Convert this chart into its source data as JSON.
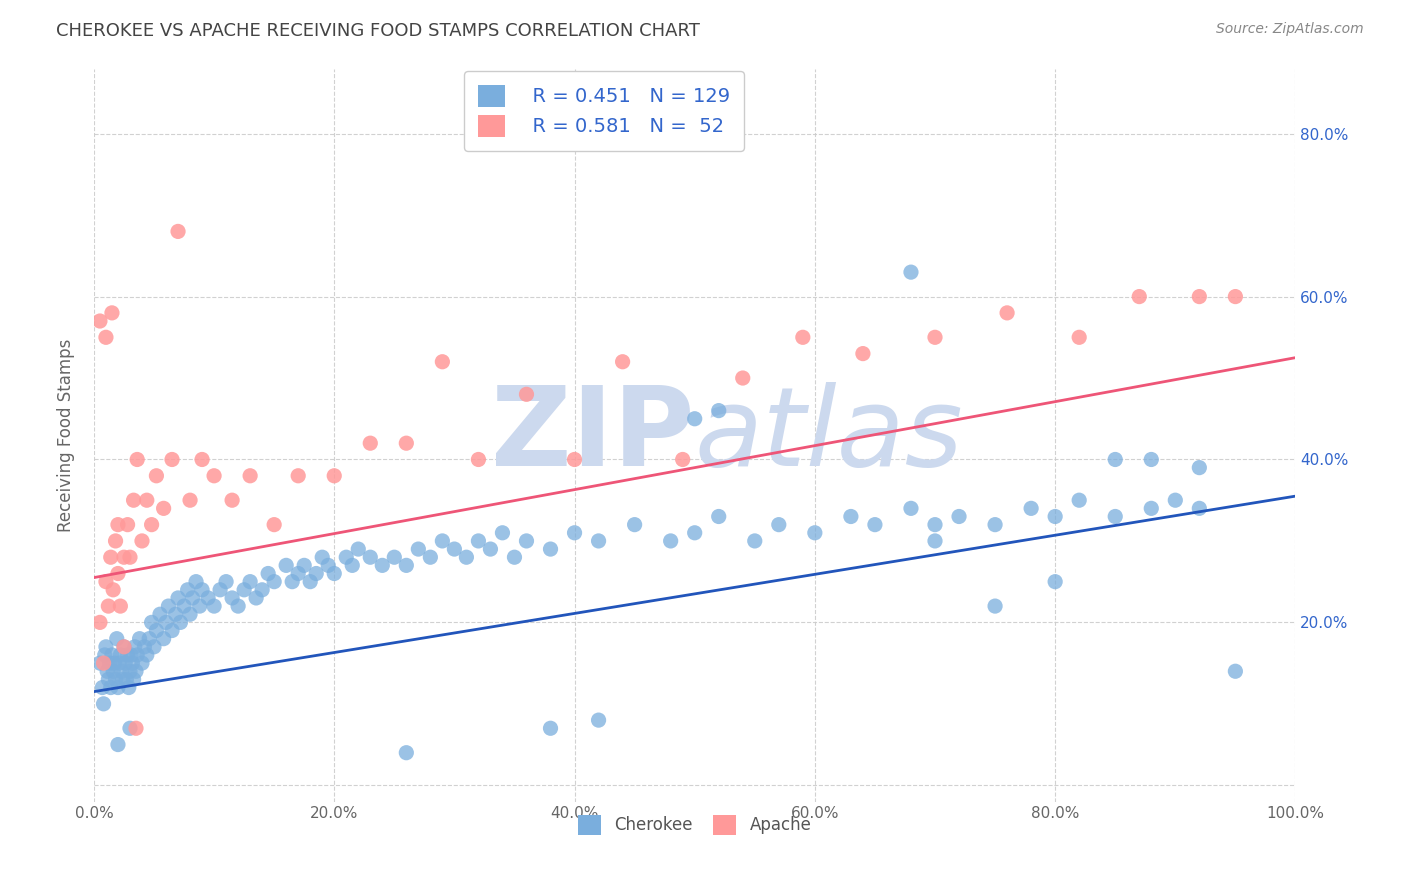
{
  "title": "CHEROKEE VS APACHE RECEIVING FOOD STAMPS CORRELATION CHART",
  "source": "Source: ZipAtlas.com",
  "ylabel": "Receiving Food Stamps",
  "xlim": [
    0.0,
    1.0
  ],
  "ylim": [
    -0.02,
    0.88
  ],
  "x_ticks": [
    0.0,
    0.2,
    0.4,
    0.6,
    0.8,
    1.0
  ],
  "x_tick_labels": [
    "0.0%",
    "20.0%",
    "40.0%",
    "60.0%",
    "80.0%",
    "100.0%"
  ],
  "y_ticks": [
    0.0,
    0.2,
    0.4,
    0.6,
    0.8
  ],
  "y_tick_labels_right": [
    "",
    "20.0%",
    "40.0%",
    "60.0%",
    "80.0%"
  ],
  "legend_R_cherokee": "R = 0.451",
  "legend_N_cherokee": "N = 129",
  "legend_R_apache": "R = 0.581",
  "legend_N_apache": "N =  52",
  "cherokee_color": "#7aaedd",
  "apache_color": "#ff9999",
  "cherokee_line_color": "#2255bb",
  "apache_line_color": "#ee5577",
  "legend_text_color": "#3366cc",
  "title_color": "#444444",
  "watermark_color": "#ccd9ee",
  "background_color": "#ffffff",
  "grid_color": "#cccccc",
  "cherokee_x": [
    0.005,
    0.007,
    0.008,
    0.009,
    0.01,
    0.011,
    0.012,
    0.013,
    0.014,
    0.015,
    0.016,
    0.017,
    0.018,
    0.019,
    0.02,
    0.021,
    0.022,
    0.023,
    0.024,
    0.025,
    0.026,
    0.027,
    0.028,
    0.029,
    0.03,
    0.031,
    0.032,
    0.033,
    0.034,
    0.035,
    0.036,
    0.038,
    0.04,
    0.042,
    0.044,
    0.046,
    0.048,
    0.05,
    0.052,
    0.055,
    0.058,
    0.06,
    0.062,
    0.065,
    0.068,
    0.07,
    0.072,
    0.075,
    0.078,
    0.08,
    0.082,
    0.085,
    0.088,
    0.09,
    0.095,
    0.1,
    0.105,
    0.11,
    0.115,
    0.12,
    0.125,
    0.13,
    0.135,
    0.14,
    0.145,
    0.15,
    0.16,
    0.165,
    0.17,
    0.175,
    0.18,
    0.185,
    0.19,
    0.195,
    0.2,
    0.21,
    0.215,
    0.22,
    0.23,
    0.24,
    0.25,
    0.26,
    0.27,
    0.28,
    0.29,
    0.3,
    0.31,
    0.32,
    0.33,
    0.34,
    0.35,
    0.36,
    0.38,
    0.4,
    0.42,
    0.45,
    0.48,
    0.5,
    0.52,
    0.55,
    0.57,
    0.6,
    0.63,
    0.65,
    0.68,
    0.7,
    0.72,
    0.75,
    0.78,
    0.8,
    0.82,
    0.85,
    0.88,
    0.9,
    0.92,
    0.5,
    0.52,
    0.68,
    0.7,
    0.75,
    0.8,
    0.85,
    0.88,
    0.92,
    0.95,
    0.26,
    0.38,
    0.42,
    0.02,
    0.03
  ],
  "cherokee_y": [
    0.15,
    0.12,
    0.1,
    0.16,
    0.17,
    0.14,
    0.13,
    0.15,
    0.12,
    0.16,
    0.14,
    0.15,
    0.13,
    0.18,
    0.12,
    0.15,
    0.16,
    0.14,
    0.13,
    0.17,
    0.15,
    0.13,
    0.16,
    0.12,
    0.14,
    0.16,
    0.15,
    0.13,
    0.17,
    0.14,
    0.16,
    0.18,
    0.15,
    0.17,
    0.16,
    0.18,
    0.2,
    0.17,
    0.19,
    0.21,
    0.18,
    0.2,
    0.22,
    0.19,
    0.21,
    0.23,
    0.2,
    0.22,
    0.24,
    0.21,
    0.23,
    0.25,
    0.22,
    0.24,
    0.23,
    0.22,
    0.24,
    0.25,
    0.23,
    0.22,
    0.24,
    0.25,
    0.23,
    0.24,
    0.26,
    0.25,
    0.27,
    0.25,
    0.26,
    0.27,
    0.25,
    0.26,
    0.28,
    0.27,
    0.26,
    0.28,
    0.27,
    0.29,
    0.28,
    0.27,
    0.28,
    0.27,
    0.29,
    0.28,
    0.3,
    0.29,
    0.28,
    0.3,
    0.29,
    0.31,
    0.28,
    0.3,
    0.29,
    0.31,
    0.3,
    0.32,
    0.3,
    0.31,
    0.33,
    0.3,
    0.32,
    0.31,
    0.33,
    0.32,
    0.34,
    0.32,
    0.33,
    0.32,
    0.34,
    0.33,
    0.35,
    0.33,
    0.34,
    0.35,
    0.34,
    0.45,
    0.46,
    0.63,
    0.3,
    0.22,
    0.25,
    0.4,
    0.4,
    0.39,
    0.14,
    0.04,
    0.07,
    0.08,
    0.05,
    0.07
  ],
  "apache_x": [
    0.005,
    0.008,
    0.01,
    0.012,
    0.014,
    0.016,
    0.018,
    0.02,
    0.022,
    0.025,
    0.028,
    0.03,
    0.033,
    0.036,
    0.04,
    0.044,
    0.048,
    0.052,
    0.058,
    0.065,
    0.07,
    0.08,
    0.09,
    0.1,
    0.115,
    0.13,
    0.15,
    0.17,
    0.2,
    0.23,
    0.26,
    0.29,
    0.32,
    0.36,
    0.4,
    0.44,
    0.49,
    0.54,
    0.59,
    0.64,
    0.7,
    0.76,
    0.82,
    0.87,
    0.92,
    0.95,
    0.005,
    0.01,
    0.015,
    0.02,
    0.025,
    0.035
  ],
  "apache_y": [
    0.2,
    0.15,
    0.25,
    0.22,
    0.28,
    0.24,
    0.3,
    0.26,
    0.22,
    0.28,
    0.32,
    0.28,
    0.35,
    0.4,
    0.3,
    0.35,
    0.32,
    0.38,
    0.34,
    0.4,
    0.68,
    0.35,
    0.4,
    0.38,
    0.35,
    0.38,
    0.32,
    0.38,
    0.38,
    0.42,
    0.42,
    0.52,
    0.4,
    0.48,
    0.4,
    0.52,
    0.4,
    0.5,
    0.55,
    0.53,
    0.55,
    0.58,
    0.55,
    0.6,
    0.6,
    0.6,
    0.57,
    0.55,
    0.58,
    0.32,
    0.17,
    0.07
  ],
  "cherokee_line_x": [
    0.0,
    1.0
  ],
  "cherokee_line_y": [
    0.115,
    0.355
  ],
  "apache_line_x": [
    0.0,
    1.0
  ],
  "apache_line_y": [
    0.255,
    0.525
  ]
}
